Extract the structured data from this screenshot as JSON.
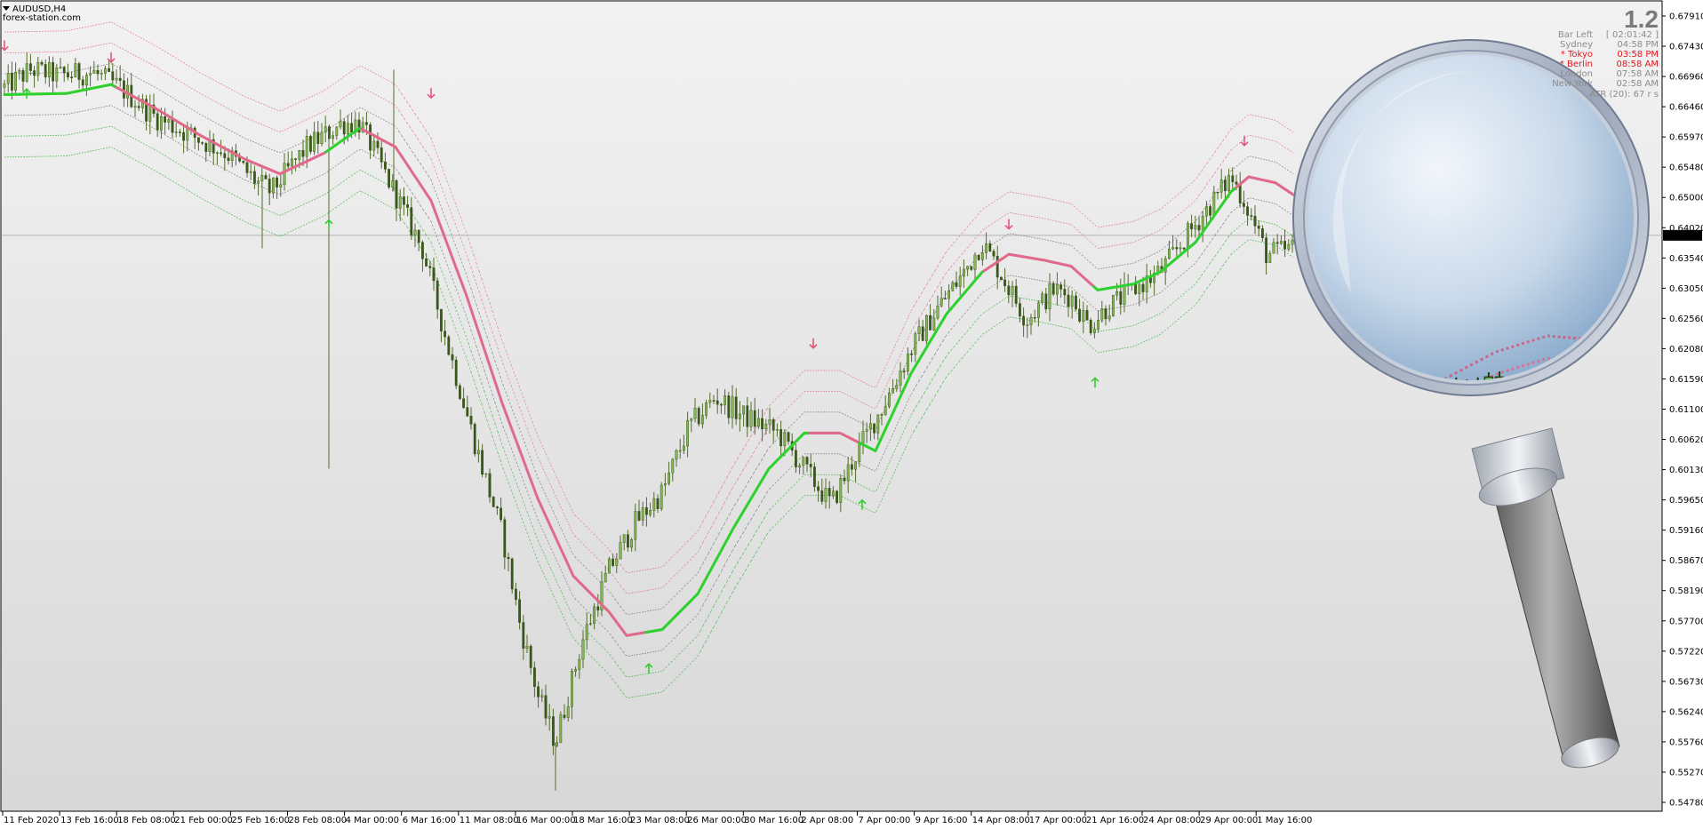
{
  "header": {
    "symbol": "AUDUSD,H4",
    "site": "forex-station.com"
  },
  "info_panel": {
    "version": "1.2",
    "rows": [
      {
        "label": "Bar Left",
        "value": "[ 02:01:42 ]",
        "color": "#8c8c8c"
      },
      {
        "label": "Sydney",
        "value": "04:58 PM",
        "color": "#8c8c8c"
      },
      {
        "label": "* Tokyo",
        "value": "03:58 PM",
        "color": "#e0181f"
      },
      {
        "label": "* Berlin",
        "value": "08:58 AM",
        "color": "#e0181f"
      },
      {
        "label": "London",
        "value": "07:58 AM",
        "color": "#8c8c8c"
      },
      {
        "label": "New York",
        "value": "02:58 AM",
        "color": "#8c8c8c"
      }
    ],
    "atr": "ATR (20): 67 r    s"
  },
  "chart_data": {
    "type": "candlestick",
    "ylim": [
      0.55,
      0.682
    ],
    "y_ticks": [
      "0.67910",
      "0.67430",
      "0.66960",
      "0.66460",
      "0.65970",
      "0.65480",
      "0.65000",
      "0.64020",
      "0.63540",
      "0.63050",
      "0.62560",
      "0.62080",
      "0.61590",
      "0.61100",
      "0.60620",
      "0.60130",
      "0.59650",
      "0.59160",
      "0.58670",
      "0.58190",
      "0.57700",
      "0.57220",
      "0.56730",
      "0.56240",
      "0.55760",
      "0.55270",
      "0.54780"
    ],
    "current_price": "0.64518",
    "x_ticks": [
      "11 Feb 2020",
      "13 Feb 16:00",
      "18 Feb 08:00",
      "21 Feb 00:00",
      "25 Feb 16:00",
      "28 Feb 08:00",
      "4 Mar 00:00",
      "6 Mar 16:00",
      "11 Mar 08:00",
      "16 Mar 00:00",
      "18 Mar 16:00",
      "23 Mar 08:00",
      "26 Mar 00:00",
      "30 Mar 16:00",
      "2 Apr 08:00",
      "7 Apr 00:00",
      "9 Apr 16:00",
      "14 Apr 08:00",
      "17 Apr 00:00",
      "21 Apr 16:00",
      "24 Apr 08:00",
      "29 Apr 00:00",
      "1 May 16:00"
    ],
    "price_path": [
      [
        0,
        0.67
      ],
      [
        30,
        0.673
      ],
      [
        60,
        0.672
      ],
      [
        100,
        0.6725
      ],
      [
        130,
        0.67
      ],
      [
        170,
        0.665
      ],
      [
        210,
        0.662
      ],
      [
        250,
        0.659
      ],
      [
        285,
        0.654
      ],
      [
        300,
        0.6525
      ],
      [
        340,
        0.66
      ],
      [
        380,
        0.664
      ],
      [
        400,
        0.664
      ],
      [
        420,
        0.658
      ],
      [
        440,
        0.652
      ],
      [
        470,
        0.643
      ],
      [
        500,
        0.626
      ],
      [
        530,
        0.61
      ],
      [
        560,
        0.595
      ],
      [
        580,
        0.58
      ],
      [
        600,
        0.568
      ],
      [
        620,
        0.56
      ],
      [
        650,
        0.577
      ],
      [
        680,
        0.589
      ],
      [
        710,
        0.597
      ],
      [
        740,
        0.602
      ],
      [
        770,
        0.613
      ],
      [
        800,
        0.618
      ],
      [
        830,
        0.615
      ],
      [
        870,
        0.612
      ],
      [
        900,
        0.606
      ],
      [
        930,
        0.6
      ],
      [
        960,
        0.609
      ],
      [
        990,
        0.617
      ],
      [
        1020,
        0.626
      ],
      [
        1050,
        0.633
      ],
      [
        1080,
        0.639
      ],
      [
        1100,
        0.644
      ],
      [
        1120,
        0.639
      ],
      [
        1150,
        0.631
      ],
      [
        1180,
        0.636
      ],
      [
        1200,
        0.635
      ],
      [
        1220,
        0.63
      ],
      [
        1240,
        0.633
      ],
      [
        1270,
        0.636
      ],
      [
        1300,
        0.639
      ],
      [
        1330,
        0.645
      ],
      [
        1360,
        0.651
      ],
      [
        1380,
        0.655
      ],
      [
        1395,
        0.651
      ],
      [
        1420,
        0.642
      ],
      [
        1450,
        0.643
      ]
    ],
    "mid_line": [
      [
        0,
        0.6688
      ],
      [
        70,
        0.669
      ],
      [
        120,
        0.6705
      ],
      [
        170,
        0.6665
      ],
      [
        220,
        0.662
      ],
      [
        270,
        0.658
      ],
      [
        310,
        0.6555
      ],
      [
        360,
        0.659
      ],
      [
        400,
        0.6632
      ],
      [
        440,
        0.66
      ],
      [
        480,
        0.651
      ],
      [
        520,
        0.635
      ],
      [
        560,
        0.617
      ],
      [
        600,
        0.601
      ],
      [
        640,
        0.588
      ],
      [
        680,
        0.582
      ],
      [
        700,
        0.578
      ],
      [
        740,
        0.579
      ],
      [
        780,
        0.585
      ],
      [
        820,
        0.596
      ],
      [
        860,
        0.606
      ],
      [
        900,
        0.612
      ],
      [
        940,
        0.612
      ],
      [
        980,
        0.609
      ],
      [
        1020,
        0.622
      ],
      [
        1060,
        0.632
      ],
      [
        1100,
        0.639
      ],
      [
        1130,
        0.642
      ],
      [
        1170,
        0.641
      ],
      [
        1200,
        0.64
      ],
      [
        1230,
        0.636
      ],
      [
        1270,
        0.637
      ],
      [
        1300,
        0.639
      ],
      [
        1340,
        0.644
      ],
      [
        1380,
        0.6525
      ],
      [
        1400,
        0.655
      ],
      [
        1430,
        0.654
      ],
      [
        1450,
        0.652
      ]
    ],
    "mid_line_color_segments": [
      {
        "from": 0,
        "to": 125,
        "color": "#2ed12e"
      },
      {
        "from": 125,
        "to": 360,
        "color": "#e06a8c"
      },
      {
        "from": 360,
        "to": 400,
        "color": "#2ed12e"
      },
      {
        "from": 400,
        "to": 720,
        "color": "#e06a8c"
      },
      {
        "from": 720,
        "to": 905,
        "color": "#2ed12e"
      },
      {
        "from": 905,
        "to": 960,
        "color": "#e06a8c"
      },
      {
        "from": 960,
        "to": 1100,
        "color": "#2ed12e"
      },
      {
        "from": 1100,
        "to": 1225,
        "color": "#e06a8c"
      },
      {
        "from": 1225,
        "to": 1385,
        "color": "#2ed12e"
      },
      {
        "from": 1385,
        "to": 1450,
        "color": "#e06a8c"
      }
    ],
    "band_offsets": [
      0.0035,
      0.007,
      0.0105
    ],
    "sell_arrows": [
      [
        0,
        0.677
      ],
      [
        120,
        0.675
      ],
      [
        480,
        0.669
      ],
      [
        910,
        0.627
      ],
      [
        1130,
        0.647
      ],
      [
        1395,
        0.661
      ]
    ],
    "buy_arrows": [
      [
        25,
        0.669
      ],
      [
        365,
        0.647
      ],
      [
        725,
        0.5725
      ],
      [
        965,
        0.6
      ],
      [
        1227,
        0.6205
      ]
    ],
    "colors": {
      "bull": "#33cc33",
      "bear": "#e2577c",
      "candle": "#556b2f",
      "axis": "#000000"
    }
  }
}
